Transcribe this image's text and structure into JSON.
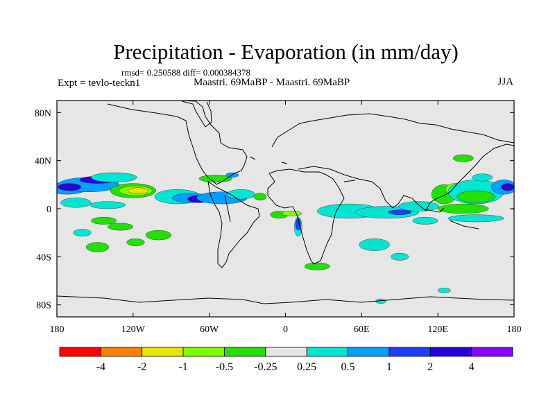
{
  "chart_data": {
    "type": "heatmap",
    "title": "Precipitation - Evaporation (in mm/day)",
    "stats_line": "rmsd= 0.250588 diff= 0.000384378",
    "experiment_label": "Expt = tevlo-teckn1",
    "comparison_label": "Maastri.  69MaBP - Maastri.  69MaBP",
    "season": "JJA",
    "x_axis": {
      "range": [
        -180,
        180
      ],
      "ticks": [
        {
          "value": -180,
          "label": "180"
        },
        {
          "value": -120,
          "label": "120W"
        },
        {
          "value": -60,
          "label": "60W"
        },
        {
          "value": 0,
          "label": "0"
        },
        {
          "value": 60,
          "label": "60E"
        },
        {
          "value": 120,
          "label": "120E"
        },
        {
          "value": 180,
          "label": "180"
        }
      ]
    },
    "y_axis": {
      "range": [
        -90,
        90
      ],
      "ticks": [
        {
          "value": 80,
          "label": "80N"
        },
        {
          "value": 40,
          "label": "40N"
        },
        {
          "value": 0,
          "label": "0"
        },
        {
          "value": -40,
          "label": "40S"
        },
        {
          "value": -80,
          "label": "80S"
        }
      ]
    },
    "colorbar": {
      "colors": [
        "#ff0000",
        "#ff8000",
        "#e6e600",
        "#80ff00",
        "#21e100",
        "#e6e6e6",
        "#00e6d2",
        "#00a0ff",
        "#1e3cff",
        "#2800dc",
        "#8c00ff"
      ],
      "boundaries": [
        "-4",
        "-2",
        "-1",
        "-0.5",
        "-0.25",
        "0.25",
        "0.5",
        "1",
        "2",
        "4"
      ]
    },
    "regions": [
      {
        "lon": -172,
        "lat": 17,
        "rx": 16,
        "ry": 5,
        "level": 0.8
      },
      {
        "lon": -155,
        "lat": 20,
        "rx": 24,
        "ry": 6,
        "level": 0.7
      },
      {
        "lon": -148,
        "lat": 24,
        "rx": 14,
        "ry": 3,
        "level": 2.5
      },
      {
        "lon": -170,
        "lat": 18,
        "rx": 9,
        "ry": 3,
        "level": 2.5
      },
      {
        "lon": -135,
        "lat": 26,
        "rx": 18,
        "ry": 4,
        "level": 0.4
      },
      {
        "lon": -165,
        "lat": 5,
        "rx": 12,
        "ry": 4,
        "level": 0.4
      },
      {
        "lon": -140,
        "lat": 3,
        "rx": 14,
        "ry": 3,
        "level": 0.4
      },
      {
        "lon": -120,
        "lat": 15,
        "rx": 18,
        "ry": 6,
        "level": -0.3
      },
      {
        "lon": -118,
        "lat": 15,
        "rx": 13,
        "ry": 4,
        "level": -0.7
      },
      {
        "lon": -116,
        "lat": 15,
        "rx": 8,
        "ry": 2.5,
        "level": -1.4
      },
      {
        "lon": -143,
        "lat": -10,
        "rx": 10,
        "ry": 3,
        "level": -0.3
      },
      {
        "lon": -130,
        "lat": -15,
        "rx": 10,
        "ry": 3,
        "level": -0.3
      },
      {
        "lon": -100,
        "lat": -22,
        "rx": 10,
        "ry": 4,
        "level": -0.3
      },
      {
        "lon": -148,
        "lat": -32,
        "rx": 9,
        "ry": 4,
        "level": -0.3
      },
      {
        "lon": -118,
        "lat": -28,
        "rx": 7,
        "ry": 3,
        "level": -0.3
      },
      {
        "lon": -160,
        "lat": -20,
        "rx": 7,
        "ry": 3,
        "level": 0.3
      },
      {
        "lon": -85,
        "lat": 10,
        "rx": 18,
        "ry": 6,
        "level": 0.4
      },
      {
        "lon": -75,
        "lat": 9,
        "rx": 14,
        "ry": 4,
        "level": 0.8
      },
      {
        "lon": -68,
        "lat": 8,
        "rx": 9,
        "ry": 3,
        "level": 2.5
      },
      {
        "lon": -50,
        "lat": 9,
        "rx": 20,
        "ry": 5,
        "level": 0.8
      },
      {
        "lon": -35,
        "lat": 12,
        "rx": 11,
        "ry": 4,
        "level": 0.4
      },
      {
        "lon": -55,
        "lat": 25,
        "rx": 13,
        "ry": 3,
        "level": -0.3
      },
      {
        "lon": -42,
        "lat": 28,
        "rx": 5,
        "ry": 2,
        "level": 0.8
      },
      {
        "lon": -20,
        "lat": 10,
        "rx": 5,
        "ry": 3,
        "level": -0.3
      },
      {
        "lon": -5,
        "lat": -5,
        "rx": 7,
        "ry": 3,
        "level": -0.4
      },
      {
        "lon": 5,
        "lat": -4,
        "rx": 8,
        "ry": 2,
        "level": -0.7
      },
      {
        "lon": 10,
        "lat": -15,
        "rx": 3,
        "ry": 8,
        "level": 0.4
      },
      {
        "lon": 10,
        "lat": -13,
        "rx": 2,
        "ry": 5,
        "level": 1.4
      },
      {
        "lon": 25,
        "lat": -48,
        "rx": 10,
        "ry": 3,
        "level": -0.3
      },
      {
        "lon": 50,
        "lat": -2,
        "rx": 25,
        "ry": 6,
        "level": 0.3
      },
      {
        "lon": 80,
        "lat": -3,
        "rx": 25,
        "ry": 5,
        "level": 0.4
      },
      {
        "lon": 90,
        "lat": -3,
        "rx": 9,
        "ry": 2,
        "level": 1.4
      },
      {
        "lon": 105,
        "lat": 2,
        "rx": 16,
        "ry": 4,
        "level": 0.4
      },
      {
        "lon": 110,
        "lat": -10,
        "rx": 10,
        "ry": 3,
        "level": 0.3
      },
      {
        "lon": 70,
        "lat": -30,
        "rx": 12,
        "ry": 5,
        "level": 0.4
      },
      {
        "lon": 90,
        "lat": -40,
        "rx": 7,
        "ry": 3,
        "level": 0.3
      },
      {
        "lon": 125,
        "lat": 12,
        "rx": 10,
        "ry": 8,
        "level": -0.3
      },
      {
        "lon": 133,
        "lat": 16,
        "rx": 7,
        "ry": 5,
        "level": -0.7
      },
      {
        "lon": 150,
        "lat": 14,
        "rx": 22,
        "ry": 10,
        "level": 0.4
      },
      {
        "lon": 150,
        "lat": 10,
        "rx": 15,
        "ry": 5,
        "level": -0.3
      },
      {
        "lon": 172,
        "lat": 18,
        "rx": 10,
        "ry": 6,
        "level": 0.8
      },
      {
        "lon": 175,
        "lat": 18,
        "rx": 5,
        "ry": 3,
        "level": 2.5
      },
      {
        "lon": 140,
        "lat": 42,
        "rx": 8,
        "ry": 3,
        "level": -0.3
      },
      {
        "lon": 155,
        "lat": 26,
        "rx": 8,
        "ry": 3,
        "level": 0.4
      },
      {
        "lon": 140,
        "lat": 0,
        "rx": 20,
        "ry": 4,
        "level": -0.3
      },
      {
        "lon": 150,
        "lat": -8,
        "rx": 22,
        "ry": 3,
        "level": 0.3
      },
      {
        "lon": 125,
        "lat": -68,
        "rx": 5,
        "ry": 2,
        "level": 0.3
      },
      {
        "lon": 75,
        "lat": -77,
        "rx": 4,
        "ry": 2,
        "level": 0.3
      }
    ]
  }
}
